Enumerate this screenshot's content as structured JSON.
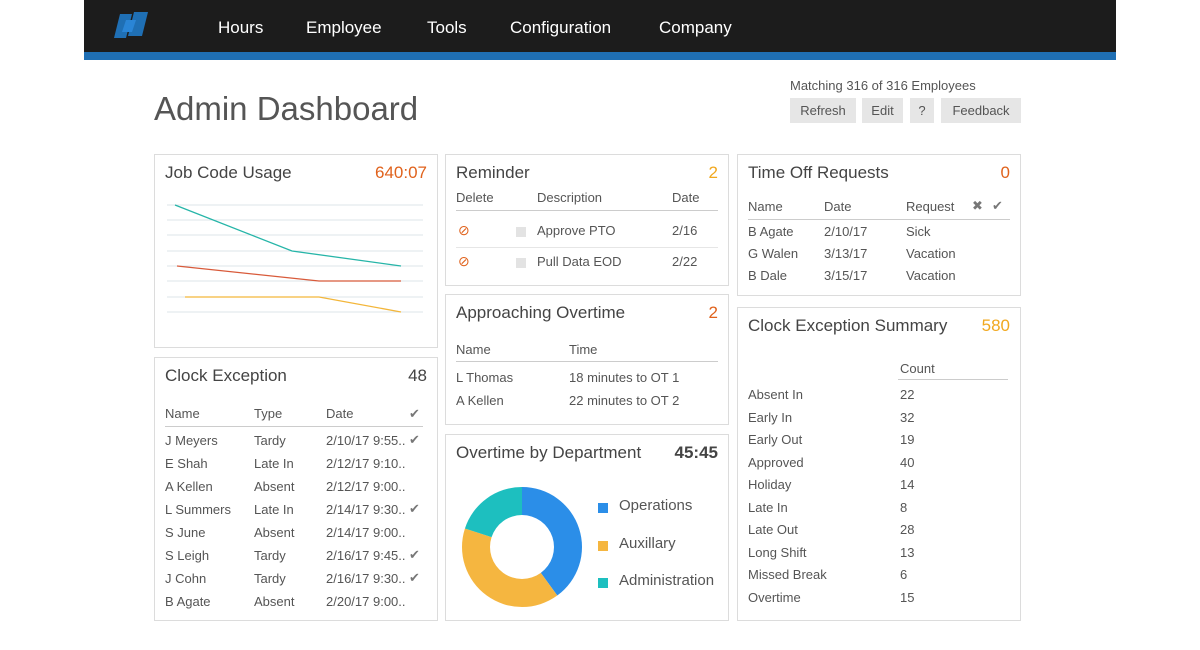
{
  "nav": {
    "items": [
      "Hours",
      "Employee",
      "Tools",
      "Configuration",
      "Company"
    ]
  },
  "colors": {
    "topbar": "#1c1c1c",
    "accent": "#1f6fb4",
    "count_orange": "#e0621c",
    "count_yellow": "#f1a81f",
    "chart_teal": "#26b5a8",
    "chart_red": "#d85a3a",
    "chart_yellow": "#f3b63a",
    "donut_blue": "#2b8ee8",
    "donut_yellow": "#f5b640",
    "donut_teal": "#1dbfbf"
  },
  "header": {
    "title": "Admin Dashboard",
    "matching": "Matching 316 of 316 Employees",
    "buttons": {
      "refresh": "Refresh",
      "edit": "Edit",
      "help": "?",
      "feedback": "Feedback"
    }
  },
  "job_code": {
    "title": "Job Code Usage",
    "count": "640:07"
  },
  "clock_exception": {
    "title": "Clock Exception",
    "count": "48",
    "headers": {
      "name": "Name",
      "type": "Type",
      "date": "Date"
    },
    "rows": [
      {
        "name": "J Meyers",
        "type": "Tardy",
        "date": "2/10/17 9:55..",
        "checked": true
      },
      {
        "name": "E Shah",
        "type": "Late In",
        "date": "2/12/17 9:10..",
        "checked": false
      },
      {
        "name": "A Kellen",
        "type": "Absent",
        "date": "2/12/17 9:00..",
        "checked": false
      },
      {
        "name": "L Summers",
        "type": "Late In",
        "date": "2/14/17 9:30..",
        "checked": true
      },
      {
        "name": "S June",
        "type": "Absent",
        "date": "2/14/17 9:00..",
        "checked": false
      },
      {
        "name": "S Leigh",
        "type": "Tardy",
        "date": "2/16/17 9:45..",
        "checked": true
      },
      {
        "name": "J Cohn",
        "type": "Tardy",
        "date": "2/16/17 9:30..",
        "checked": true
      },
      {
        "name": "B Agate",
        "type": "Absent",
        "date": "2/20/17 9:00..",
        "checked": false
      }
    ]
  },
  "reminder": {
    "title": "Reminder",
    "count": "2",
    "headers": {
      "delete": "Delete",
      "description": "Description",
      "date": "Date"
    },
    "rows": [
      {
        "description": "Approve PTO",
        "date": "2/16"
      },
      {
        "description": "Pull Data EOD",
        "date": "2/22"
      }
    ]
  },
  "approaching_overtime": {
    "title": "Approaching Overtime",
    "count": "2",
    "headers": {
      "name": "Name",
      "time": "Time"
    },
    "rows": [
      {
        "name": "L Thomas",
        "time": "18 minutes to OT 1"
      },
      {
        "name": "A Kellen",
        "time": "22 minutes to OT 2"
      }
    ]
  },
  "overtime_dept": {
    "title": "Overtime by Department",
    "count": "45:45",
    "legend": [
      "Operations",
      "Auxillary",
      "Administration"
    ],
    "shares": [
      0.4,
      0.4,
      0.2
    ]
  },
  "time_off": {
    "title": "Time Off Requests",
    "count": "0",
    "headers": {
      "name": "Name",
      "date": "Date",
      "request": "Request"
    },
    "rows": [
      {
        "name": "B Agate",
        "date": "2/10/17",
        "request": "Sick"
      },
      {
        "name": "G Walen",
        "date": "3/13/17",
        "request": "Vacation"
      },
      {
        "name": "B Dale",
        "date": "3/15/17",
        "request": "Vacation"
      }
    ]
  },
  "clock_summary": {
    "title": "Clock Exception Summary",
    "count": "580",
    "count_header": "Count",
    "rows": [
      {
        "label": "Absent In",
        "count": "22"
      },
      {
        "label": "Early In",
        "count": "32"
      },
      {
        "label": "Early Out",
        "count": "19"
      },
      {
        "label": "Approved",
        "count": "40"
      },
      {
        "label": "Holiday",
        "count": "14"
      },
      {
        "label": "Late In",
        "count": "8"
      },
      {
        "label": "Late Out",
        "count": "28"
      },
      {
        "label": "Long Shift",
        "count": "13"
      },
      {
        "label": "Missed Break",
        "count": "6"
      },
      {
        "label": "Overtime",
        "count": "15"
      }
    ]
  }
}
